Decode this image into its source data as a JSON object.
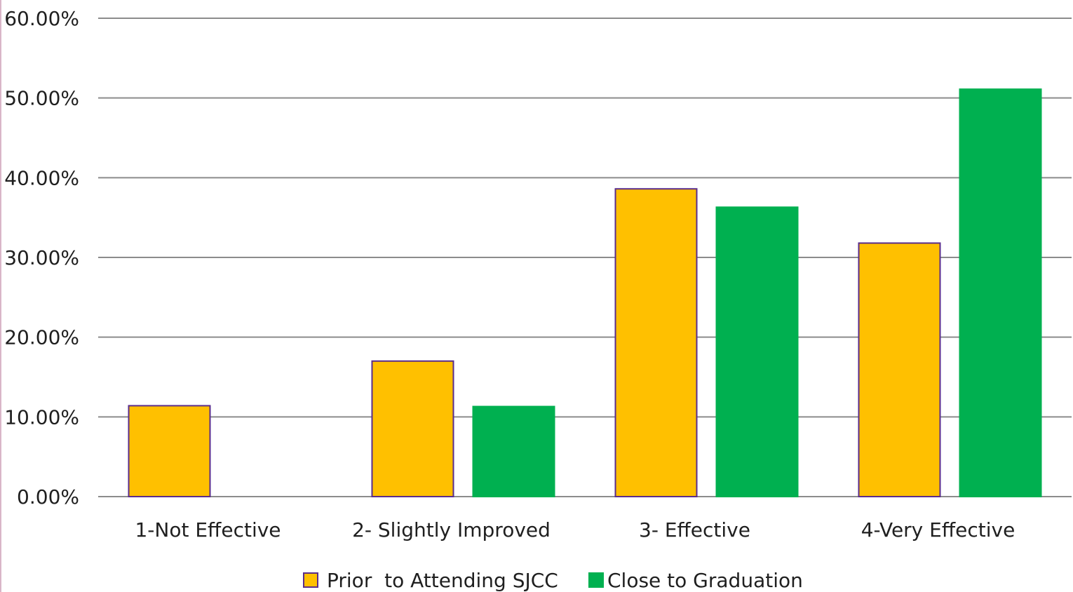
{
  "chart_data": {
    "type": "bar",
    "title": "",
    "xlabel": "",
    "ylabel": "",
    "categories": [
      "1-Not Effective",
      "2- Slightly Improved",
      "3- Effective",
      "4-Very Effective"
    ],
    "series": [
      {
        "name": "Prior  to Attending SJCC",
        "values": [
          11.4,
          17.0,
          38.6,
          31.8
        ],
        "color": "#FFC000",
        "border": "#5a2d8c"
      },
      {
        "name": "Close to Graduation",
        "values": [
          0.0,
          11.3,
          36.3,
          51.1
        ],
        "color": "#00B050",
        "border": "#00B050"
      }
    ],
    "ylim": [
      0,
      60
    ],
    "yticks": [
      0,
      10,
      20,
      30,
      40,
      50,
      60
    ],
    "ytick_labels": [
      "0.00%",
      "10.00%",
      "20.00%",
      "30.00%",
      "40.00%",
      "50.00%",
      "60.00%"
    ],
    "grid": true,
    "gridline_color": "#8c8c8c",
    "legend_position": "bottom"
  }
}
